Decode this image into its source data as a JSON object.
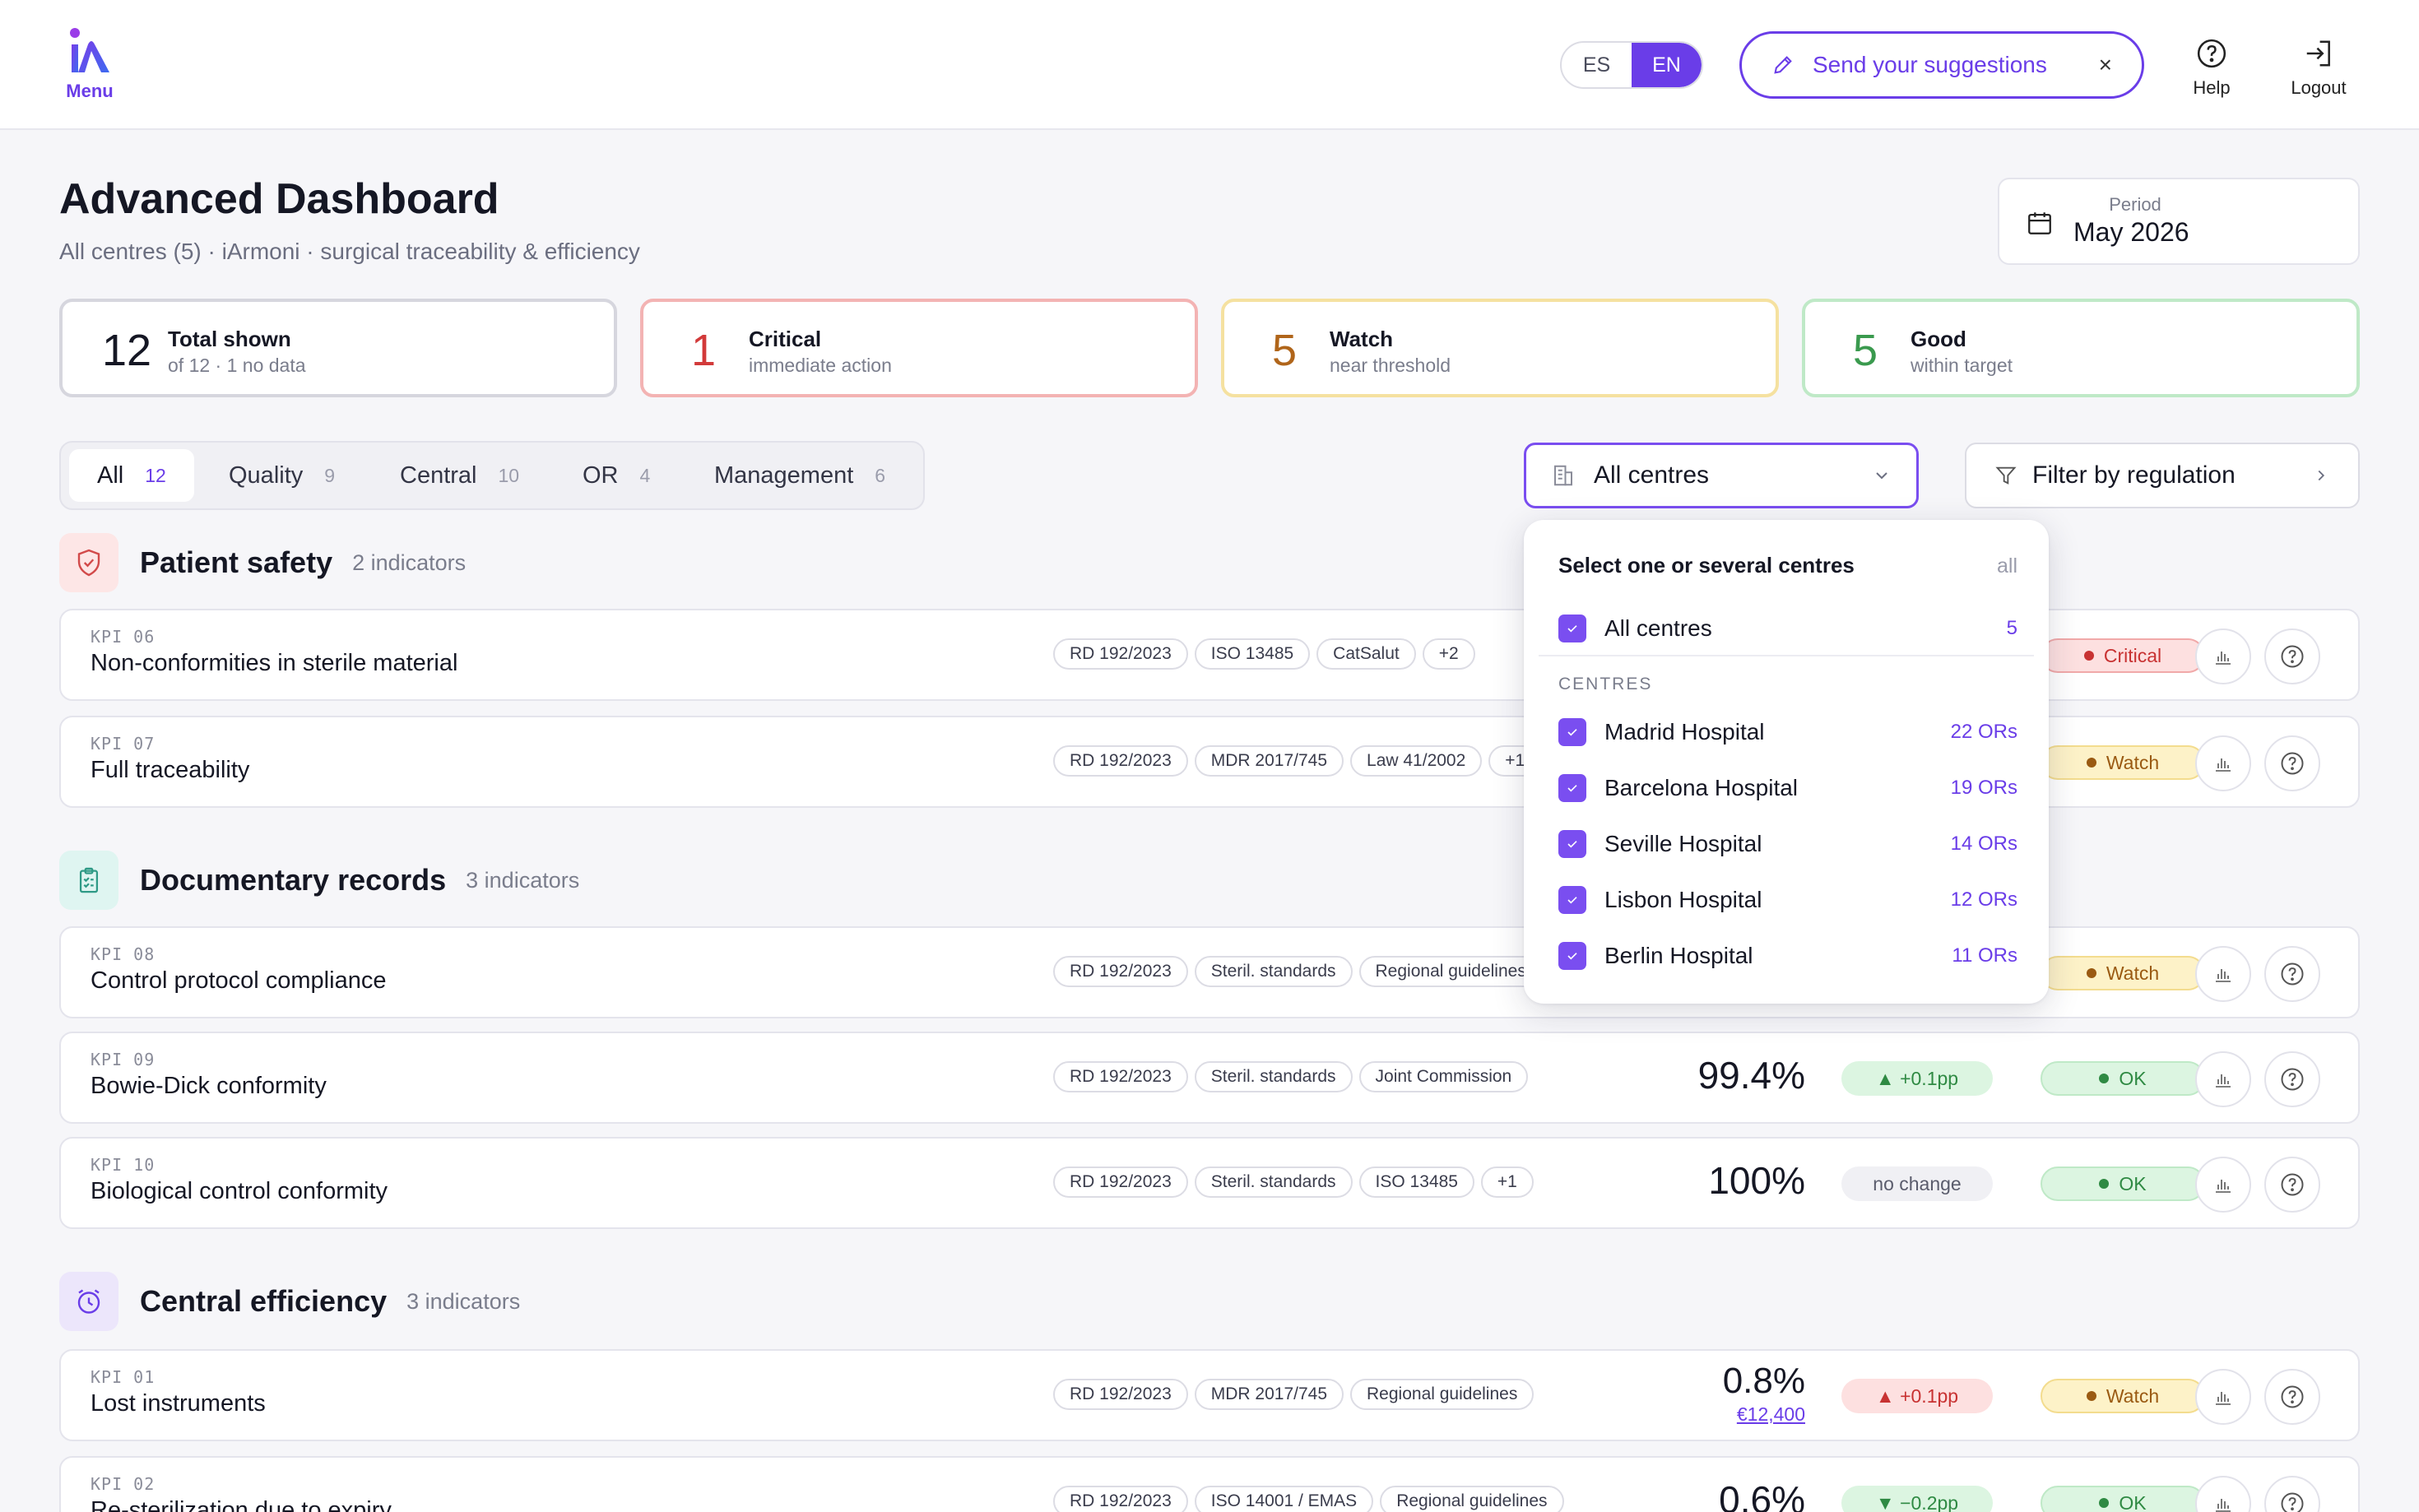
{
  "header": {
    "menu_label": "Menu",
    "lang": {
      "es": "ES",
      "en": "EN",
      "active": "EN"
    },
    "suggest_label": "Send your suggestions",
    "suggest_close": "×",
    "help_label": "Help",
    "logout_label": "Logout"
  },
  "page": {
    "title": "Advanced Dashboard",
    "subtitle": "All centres (5) · iArmoni · surgical traceability & efficiency",
    "period_label": "Period",
    "period_value": "May 2026"
  },
  "summary": [
    {
      "value": "12",
      "label": "Total shown",
      "sub": "of 12 · 1 no data"
    },
    {
      "value": "1",
      "label": "Critical",
      "sub": "immediate action"
    },
    {
      "value": "5",
      "label": "Watch",
      "sub": "near threshold"
    },
    {
      "value": "5",
      "label": "Good",
      "sub": "within target"
    }
  ],
  "tabs": [
    {
      "label": "All",
      "count": "12"
    },
    {
      "label": "Quality",
      "count": "9"
    },
    {
      "label": "Central",
      "count": "10"
    },
    {
      "label": "OR",
      "count": "4"
    },
    {
      "label": "Management",
      "count": "6"
    }
  ],
  "filters": {
    "centres_label": "All centres",
    "regulation_label": "Filter by regulation"
  },
  "sections": [
    {
      "name": "Patient safety",
      "count": "2 indicators"
    },
    {
      "name": "Documentary records",
      "count": "3 indicators"
    },
    {
      "name": "Central efficiency",
      "count": "3 indicators"
    }
  ],
  "rows": [
    {
      "kpi": "KPI 06",
      "name": "Non-conformities in sterile material",
      "tags": [
        "RD 192/2023",
        "ISO 13485",
        "CatSalut",
        "+2"
      ],
      "status": "Critical"
    },
    {
      "kpi": "KPI 07",
      "name": "Full traceability",
      "tags": [
        "RD 192/2023",
        "MDR 2017/745",
        "Law 41/2002",
        "+1"
      ],
      "status": "Watch"
    },
    {
      "kpi": "KPI 08",
      "name": "Control protocol compliance",
      "tags": [
        "RD 192/2023",
        "Steril. standards",
        "Regional guidelines"
      ],
      "status": "Watch"
    },
    {
      "kpi": "KPI 09",
      "name": "Bowie-Dick conformity",
      "tags": [
        "RD 192/2023",
        "Steril. standards",
        "Joint Commission"
      ],
      "value": "99.4%",
      "change": "▲ +0.1pp",
      "status": "OK"
    },
    {
      "kpi": "KPI 10",
      "name": "Biological control conformity",
      "tags": [
        "RD 192/2023",
        "Steril. standards",
        "ISO 13485",
        "+1"
      ],
      "value": "100%",
      "change": "no change",
      "status": "OK"
    },
    {
      "kpi": "KPI 01",
      "name": "Lost instruments",
      "tags": [
        "RD 192/2023",
        "MDR 2017/745",
        "Regional guidelines"
      ],
      "value": "0.8%",
      "money": "€12,400",
      "change": "▲ +0.1pp",
      "status": "Watch"
    },
    {
      "kpi": "KPI 02",
      "name": "Re-sterilization due to expiry",
      "tags": [
        "RD 192/2023",
        "ISO 14001 / EMAS",
        "Regional guidelines"
      ],
      "value": "0.6%",
      "change": "▼ −0.2pp",
      "status": "OK"
    }
  ],
  "dropdown": {
    "heading": "Select one or several centres",
    "all_link": "all",
    "all_item": {
      "label": "All centres",
      "count": "5"
    },
    "group_label": "CENTRES",
    "centres": [
      {
        "label": "Madrid Hospital",
        "count": "22 ORs"
      },
      {
        "label": "Barcelona Hospital",
        "count": "19 ORs"
      },
      {
        "label": "Seville Hospital",
        "count": "14 ORs"
      },
      {
        "label": "Lisbon Hospital",
        "count": "12 ORs"
      },
      {
        "label": "Berlin Hospital",
        "count": "11 ORs"
      }
    ]
  },
  "colors": {
    "accent": "#6a3de8",
    "critical": "#d23a3a",
    "watch": "#b0651a",
    "good": "#3a9a4e"
  }
}
